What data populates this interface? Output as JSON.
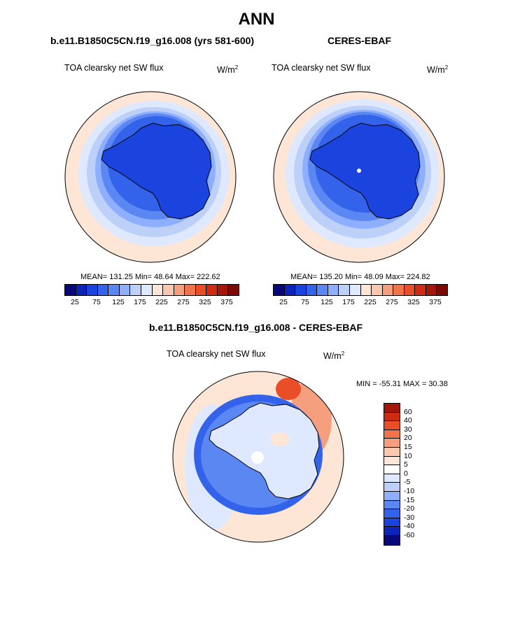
{
  "figure": {
    "title": "ANN",
    "panel1": {
      "title": "b.e11.B1850C5CN.f19_g16.008 (yrs 581-600)",
      "variable": "TOA clearsky net SW flux",
      "units_base": "W/m",
      "units_sup": "2",
      "stats": "MEAN= 131.25  Min=  48.64  Max= 222.62"
    },
    "panel2": {
      "title": "CERES-EBAF",
      "variable": "TOA clearsky net SW flux",
      "units_base": "W/m",
      "units_sup": "2",
      "stats": "MEAN= 135.20  Min=  48.09  Max= 224.82"
    },
    "panel3": {
      "title": "b.e11.B1850C5CN.f19_g16.008 - CERES-EBAF",
      "variable": "TOA clearsky net SW flux",
      "units_base": "W/m",
      "units_sup": "2",
      "stats": "MIN = -55.31 MAX =  30.38"
    }
  },
  "chart_data": [
    {
      "type": "heatmap",
      "projection": "south-polar-stereographic",
      "colorbar": {
        "orientation": "horizontal",
        "tick_labels": [
          "25",
          "75",
          "125",
          "175",
          "225",
          "275",
          "325",
          "375"
        ],
        "colors": [
          "#08087a",
          "#0c24b8",
          "#1b43dd",
          "#3263ea",
          "#5a87f2",
          "#8eafff",
          "#bcd0f8",
          "#dee9ff",
          "#fde6d6",
          "#fbc7ae",
          "#f69f7e",
          "#f07349",
          "#ea4e27",
          "#cf2a12",
          "#a4150a",
          "#7a0b04"
        ]
      },
      "regions": [
        {
          "label": "antarctic-continent",
          "approx_value": 60
        },
        {
          "label": "sea-ice-zone",
          "approx_value": 100
        },
        {
          "label": "southern-ocean",
          "approx_value": 165
        },
        {
          "label": "mid-latitude-ocean",
          "approx_value": 215
        }
      ]
    },
    {
      "type": "heatmap",
      "projection": "south-polar-stereographic",
      "colorbar": {
        "orientation": "horizontal",
        "tick_labels": [
          "25",
          "75",
          "125",
          "175",
          "225",
          "275",
          "325",
          "375"
        ],
        "colors": [
          "#08087a",
          "#0c24b8",
          "#1b43dd",
          "#3263ea",
          "#5a87f2",
          "#8eafff",
          "#bcd0f8",
          "#dee9ff",
          "#fde6d6",
          "#fbc7ae",
          "#f69f7e",
          "#f07349",
          "#ea4e27",
          "#cf2a12",
          "#a4150a",
          "#7a0b04"
        ]
      },
      "regions": [
        {
          "label": "antarctic-continent",
          "approx_value": 60
        },
        {
          "label": "sea-ice-zone",
          "approx_value": 105
        },
        {
          "label": "southern-ocean",
          "approx_value": 165
        },
        {
          "label": "mid-latitude-ocean",
          "approx_value": 215
        }
      ]
    },
    {
      "type": "heatmap",
      "projection": "south-polar-stereographic",
      "colorbar": {
        "orientation": "vertical",
        "tick_labels": [
          "60",
          "40",
          "30",
          "20",
          "15",
          "10",
          "5",
          "0",
          "-5",
          "-10",
          "-15",
          "-20",
          "-30",
          "-40",
          "-60"
        ],
        "colors": [
          "#a4150a",
          "#cf2a12",
          "#ea4e27",
          "#f07349",
          "#f69f7e",
          "#fbc7ae",
          "#fde6d6",
          "#ffffff",
          "#dee9ff",
          "#bcd0f8",
          "#8eafff",
          "#5a87f2",
          "#3263ea",
          "#1b43dd",
          "#0c24b8",
          "#08087a"
        ]
      },
      "regions": [
        {
          "label": "antarctic-continent",
          "approx_value": 0
        },
        {
          "label": "sea-ice-zone",
          "approx_value": -20
        },
        {
          "label": "pacific-sector-high",
          "approx_value": 15
        },
        {
          "label": "mid-latitude-ocean",
          "approx_value": 2
        }
      ]
    }
  ]
}
